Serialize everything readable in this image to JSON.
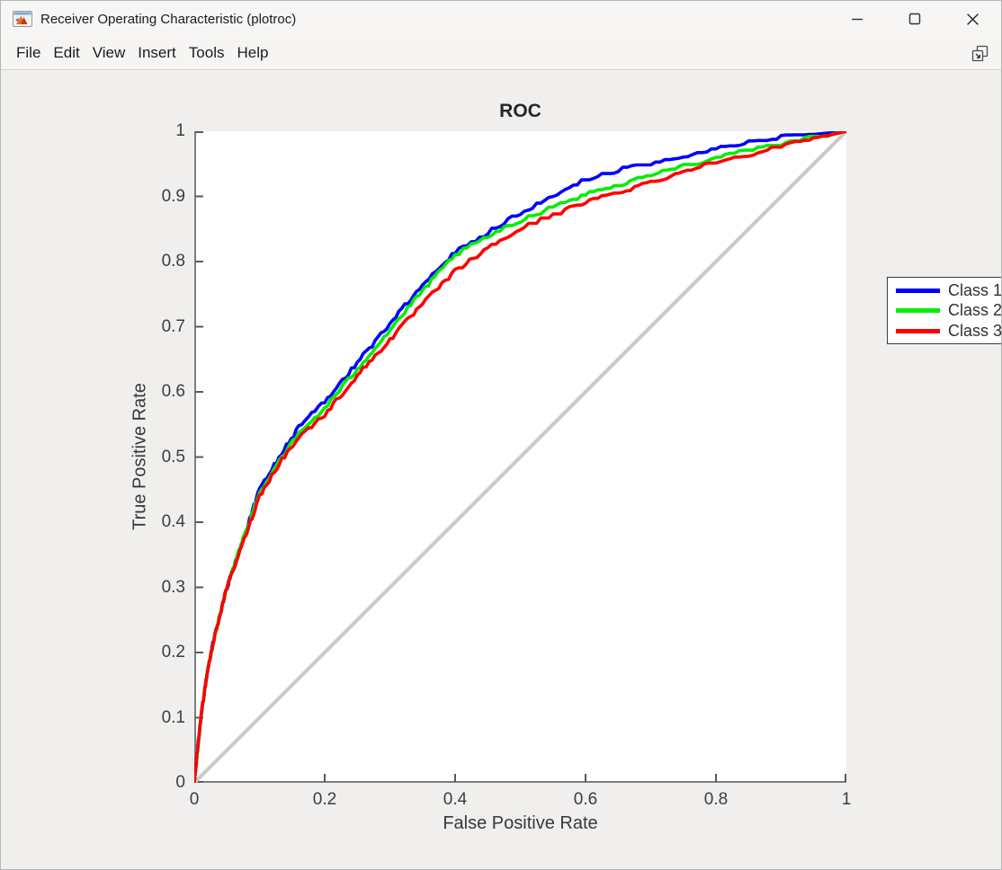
{
  "window": {
    "title": "Receiver Operating Characteristic (plotroc)",
    "controls": {
      "minimize": "minimize",
      "maximize": "maximize",
      "close": "close"
    }
  },
  "menu": {
    "items": [
      {
        "label": "File"
      },
      {
        "label": "Edit"
      },
      {
        "label": "View"
      },
      {
        "label": "Insert"
      },
      {
        "label": "Tools"
      },
      {
        "label": "Help"
      }
    ],
    "dock_tooltip": "Dock figure"
  },
  "chart_data": {
    "type": "line",
    "title": "ROC",
    "xlabel": "False Positive Rate",
    "ylabel": "True Positive Rate",
    "xlim": [
      0,
      1
    ],
    "ylim": [
      0,
      1
    ],
    "xticks": [
      0,
      0.2,
      0.4,
      0.6,
      0.8,
      1
    ],
    "yticks": [
      0,
      0.1,
      0.2,
      0.3,
      0.4,
      0.5,
      0.6,
      0.7,
      0.8,
      0.9,
      1
    ],
    "grid": false,
    "legend_position": "northeast",
    "x": [
      0,
      0.005,
      0.01,
      0.02,
      0.03,
      0.05,
      0.07,
      0.1,
      0.13,
      0.16,
      0.2,
      0.25,
      0.3,
      0.35,
      0.4,
      0.45,
      0.5,
      0.55,
      0.6,
      0.65,
      0.7,
      0.75,
      0.8,
      0.85,
      0.9,
      0.95,
      1.0
    ],
    "series": [
      {
        "name": "Class 1",
        "color": "#0000ff",
        "values": [
          0,
          0.05,
          0.1,
          0.17,
          0.22,
          0.3,
          0.36,
          0.45,
          0.5,
          0.545,
          0.585,
          0.645,
          0.705,
          0.765,
          0.815,
          0.845,
          0.875,
          0.9,
          0.925,
          0.94,
          0.95,
          0.962,
          0.972,
          0.982,
          0.99,
          0.995,
          1.0
        ]
      },
      {
        "name": "Class 2",
        "color": "#00ee00",
        "values": [
          0,
          0.05,
          0.1,
          0.17,
          0.22,
          0.3,
          0.36,
          0.445,
          0.495,
          0.535,
          0.575,
          0.635,
          0.695,
          0.755,
          0.81,
          0.838,
          0.862,
          0.885,
          0.902,
          0.917,
          0.932,
          0.947,
          0.958,
          0.97,
          0.98,
          0.99,
          1.0
        ]
      },
      {
        "name": "Class 3",
        "color": "#ff0000",
        "values": [
          0,
          0.05,
          0.1,
          0.17,
          0.22,
          0.3,
          0.355,
          0.44,
          0.49,
          0.53,
          0.565,
          0.625,
          0.68,
          0.735,
          0.785,
          0.82,
          0.85,
          0.872,
          0.89,
          0.906,
          0.922,
          0.938,
          0.952,
          0.965,
          0.976,
          0.988,
          1.0
        ]
      }
    ],
    "reference_line": {
      "from": [
        0,
        0
      ],
      "to": [
        1,
        1
      ],
      "color": "#c9c9c9"
    },
    "axis_color": "#7d7d7d",
    "tick_color": "#5a5a5a"
  }
}
